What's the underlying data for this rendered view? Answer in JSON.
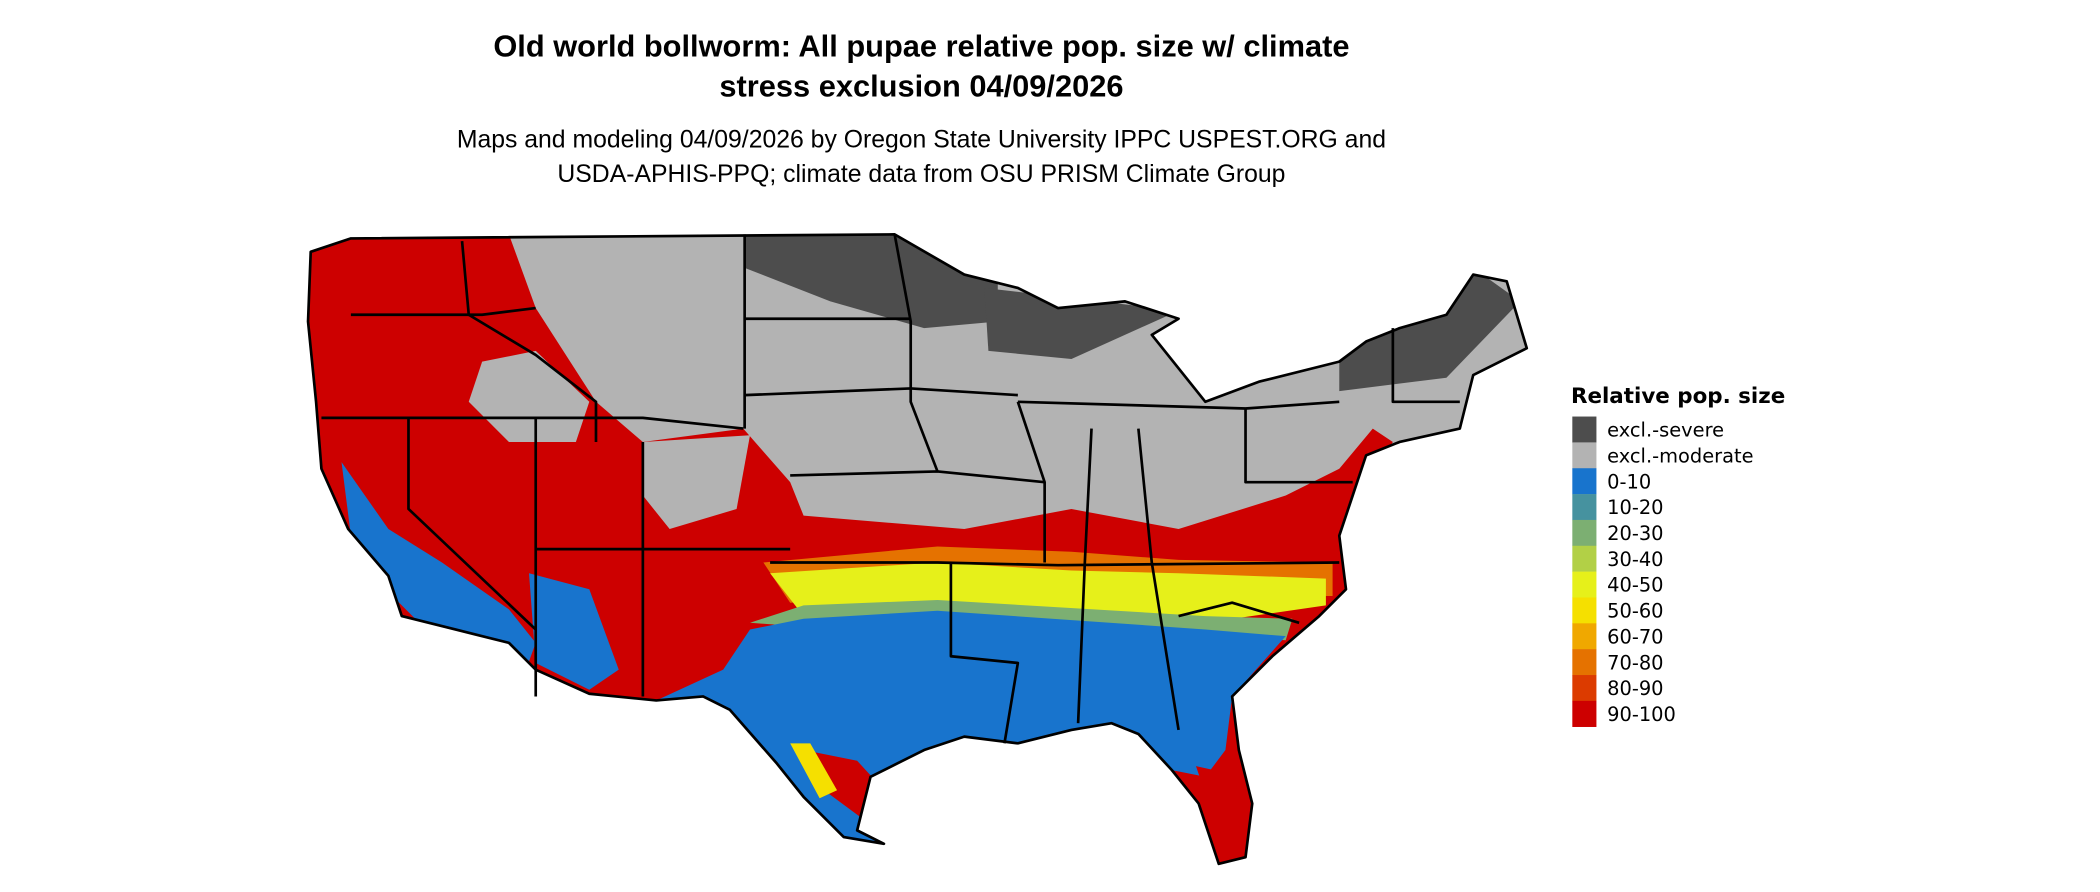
{
  "title": {
    "line1": "Old world bollworm: All pupae relative pop. size w/ climate",
    "line2": "stress exclusion 04/09/2026"
  },
  "subtitle": {
    "line1": "Maps and modeling 04/09/2026 by Oregon State University IPPC USPEST.ORG and",
    "line2": "USDA-APHIS-PPQ; climate data from OSU PRISM Climate Group"
  },
  "legend": {
    "title": "Relative pop. size",
    "items": [
      {
        "label": "excl.-severe",
        "color": "#4d4d4d"
      },
      {
        "label": "excl.-moderate",
        "color": "#b3b3b3"
      },
      {
        "label": "0-10",
        "color": "#1874cd"
      },
      {
        "label": "10-20",
        "color": "#46929f"
      },
      {
        "label": "20-30",
        "color": "#7caf72"
      },
      {
        "label": "30-40",
        "color": "#b2d046"
      },
      {
        "label": "40-50",
        "color": "#e6f01a"
      },
      {
        "label": "50-60",
        "color": "#f5e000"
      },
      {
        "label": "60-70",
        "color": "#f0a800"
      },
      {
        "label": "70-80",
        "color": "#e57200"
      },
      {
        "label": "80-90",
        "color": "#dc3b00"
      },
      {
        "label": "90-100",
        "color": "#cd0000"
      }
    ]
  }
}
